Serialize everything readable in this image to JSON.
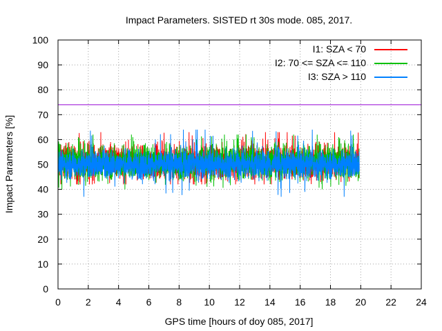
{
  "chart_data": {
    "type": "line",
    "title": "Impact Parameters. SISTED rt 30s mode. 085, 2017.",
    "xlabel": "GPS time [hours of doy 085, 2017]",
    "ylabel": "Impact Parameters [%]",
    "xlim": [
      0,
      24
    ],
    "ylim": [
      0,
      100
    ],
    "x_ticks": [
      0,
      2,
      4,
      6,
      8,
      10,
      12,
      14,
      16,
      18,
      20,
      22,
      24
    ],
    "y_ticks": [
      0,
      10,
      20,
      30,
      40,
      50,
      60,
      70,
      80,
      90,
      100
    ],
    "grid": true,
    "legend_position": "top-right",
    "threshold": {
      "value": 74,
      "color": "#9400d3"
    },
    "series": [
      {
        "name": "I1: SZA < 70",
        "color": "#ff0000",
        "x_range": [
          0,
          19.9
        ],
        "mean": 51,
        "spread": 6,
        "min": 42,
        "max": 63
      },
      {
        "name": "I2: 70 <= SZA <= 110",
        "color": "#00c000",
        "x_range": [
          0,
          19.9
        ],
        "mean": 51,
        "spread": 6,
        "min": 40,
        "max": 62
      },
      {
        "name": "I3: SZA > 110",
        "color": "#0080ff",
        "x_range": [
          0,
          19.9
        ],
        "mean": 50,
        "spread": 5,
        "min": 37,
        "max": 64
      }
    ]
  }
}
